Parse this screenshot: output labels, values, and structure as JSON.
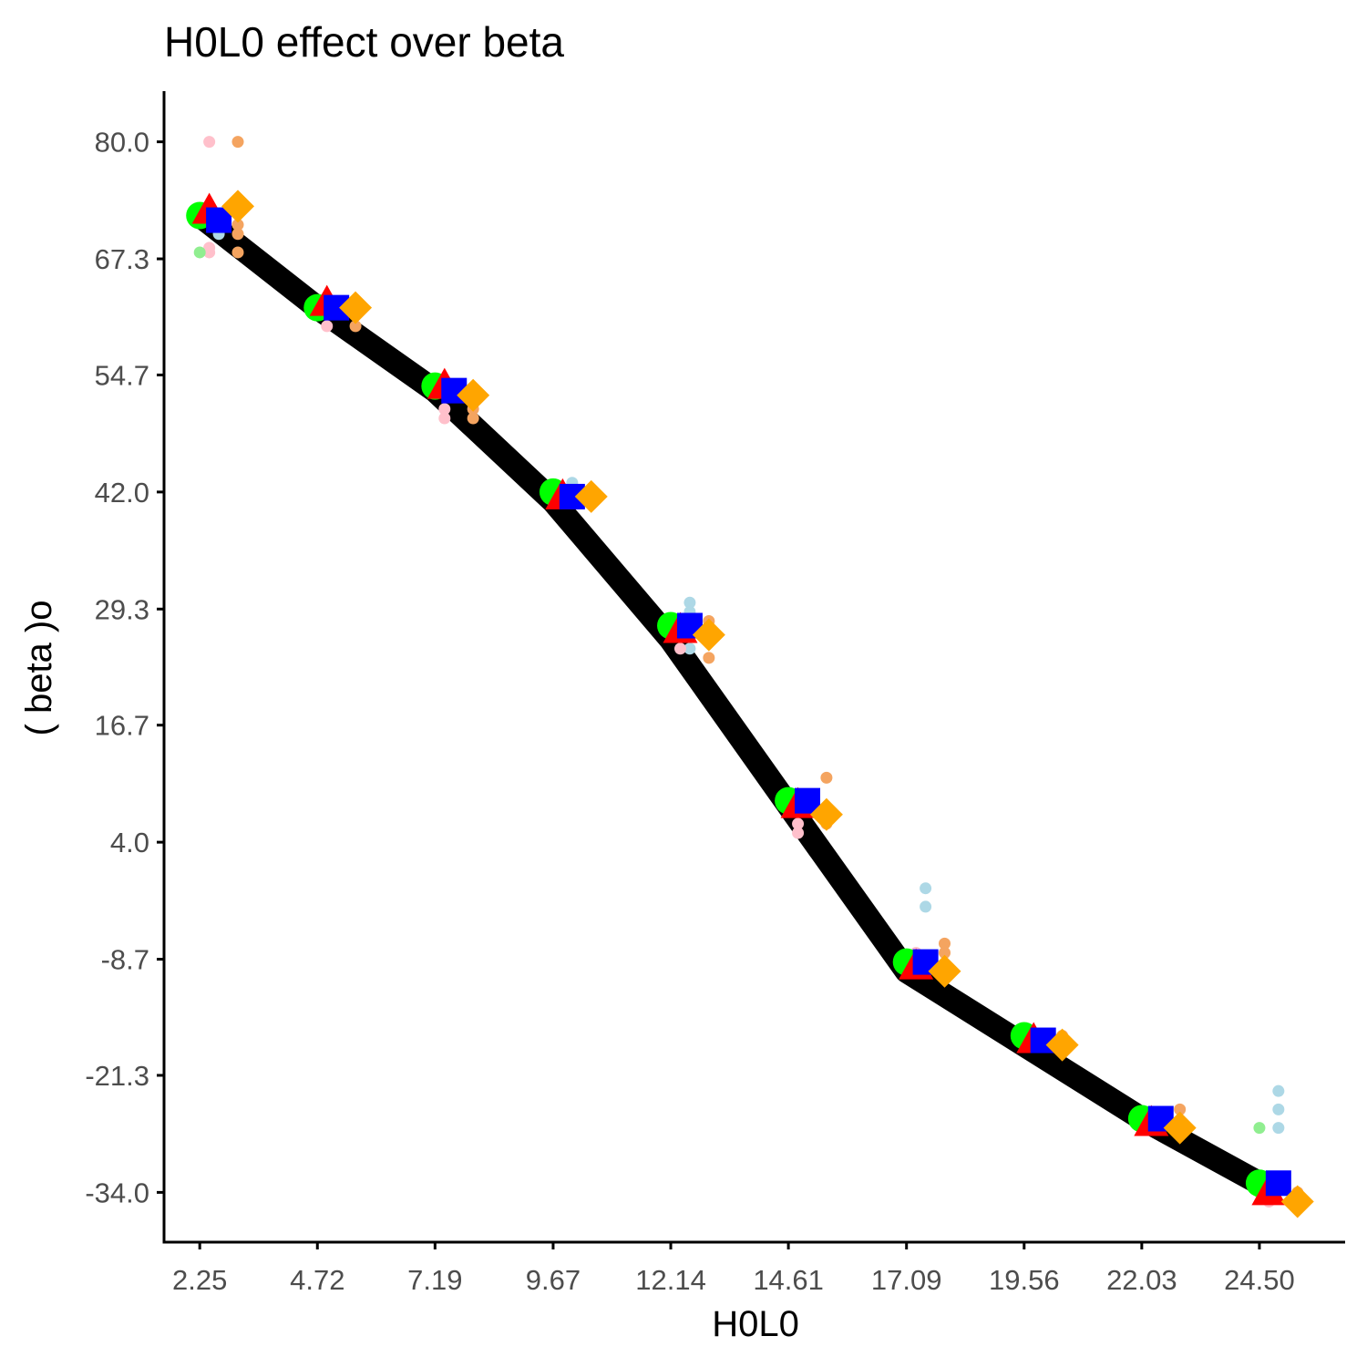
{
  "chart_data": {
    "type": "line",
    "title": "H0L0 effect over  beta",
    "xlabel": "H0L0",
    "ylabel": "( beta )o",
    "x_ticks": [
      "2.25",
      "4.72",
      "7.19",
      "9.67",
      "12.14",
      "14.61",
      "17.09",
      "19.56",
      "22.03",
      "24.50"
    ],
    "y_ticks": [
      "80.0",
      "67.3",
      "54.7",
      "42.0",
      "29.3",
      "16.7",
      "4.0",
      "-8.7",
      "-21.3",
      "-34.0"
    ],
    "xlim": [
      1.5,
      26.3
    ],
    "ylim": [
      -39.4,
      85.5
    ],
    "grid": false,
    "legend": "none",
    "colors": {
      "trend": "#000000",
      "green": "#00ff00",
      "red": "#ff0000",
      "blue": "#0000ff",
      "orange": "#ffa500",
      "light_green": "#90ee90",
      "light_blue": "#add8e6",
      "pink": "#ffc0cb",
      "sandy": "#f4a460"
    },
    "x": [
      2.25,
      4.72,
      7.19,
      9.67,
      12.14,
      14.61,
      17.09,
      19.56,
      22.03,
      24.5
    ],
    "trend_line": [
      72,
      62,
      53,
      41,
      26,
      8,
      -10,
      -18,
      -26,
      -33
    ],
    "series": [
      {
        "shape": "circle",
        "color": "#00ff00",
        "offset": 0.0,
        "values": [
          72.0,
          62.0,
          53.5,
          42.0,
          27.5,
          8.5,
          -9.0,
          -17.0,
          -26.0,
          -33.0
        ]
      },
      {
        "shape": "triangle",
        "color": "#ff0000",
        "offset": 0.2,
        "values": [
          72.5,
          62.5,
          53.5,
          41.5,
          27.0,
          8.0,
          -9.5,
          -17.5,
          -26.5,
          -34.0
        ]
      },
      {
        "shape": "square",
        "color": "#0000ff",
        "offset": 0.4,
        "values": [
          71.5,
          62.0,
          53.0,
          41.5,
          27.5,
          8.5,
          -9.0,
          -17.5,
          -26.0,
          -33.0
        ]
      },
      {
        "shape": "diamond",
        "color": "#ffa500",
        "offset": 0.8,
        "values": [
          73.0,
          62.0,
          52.5,
          41.5,
          26.5,
          7.0,
          -10.0,
          -18.0,
          -27.0,
          -35.0
        ]
      }
    ],
    "small_points": [
      {
        "color": "#ffc0cb",
        "x": 2.45,
        "y": 80.0
      },
      {
        "color": "#f4a460",
        "x": 3.05,
        "y": 80.0
      },
      {
        "color": "#add8e6",
        "x": 2.65,
        "y": 70.0
      },
      {
        "color": "#ffc0cb",
        "x": 2.45,
        "y": 68.5
      },
      {
        "color": "#ffc0cb",
        "x": 2.45,
        "y": 68.0
      },
      {
        "color": "#90ee90",
        "x": 2.25,
        "y": 68.0
      },
      {
        "color": "#f4a460",
        "x": 3.05,
        "y": 70.0
      },
      {
        "color": "#f4a460",
        "x": 3.05,
        "y": 71.0
      },
      {
        "color": "#f4a460",
        "x": 3.05,
        "y": 68.0
      },
      {
        "color": "#ffc0cb",
        "x": 4.92,
        "y": 60.0
      },
      {
        "color": "#f4a460",
        "x": 5.52,
        "y": 60.0
      },
      {
        "color": "#ffc0cb",
        "x": 7.39,
        "y": 50.0
      },
      {
        "color": "#ffc0cb",
        "x": 7.39,
        "y": 51.0
      },
      {
        "color": "#f4a460",
        "x": 7.99,
        "y": 50.0
      },
      {
        "color": "#f4a460",
        "x": 7.99,
        "y": 51.0
      },
      {
        "color": "#add8e6",
        "x": 10.07,
        "y": 43.0
      },
      {
        "color": "#add8e6",
        "x": 12.54,
        "y": 30.0
      },
      {
        "color": "#add8e6",
        "x": 12.54,
        "y": 29.0
      },
      {
        "color": "#add8e6",
        "x": 12.54,
        "y": 25.0
      },
      {
        "color": "#ffc0cb",
        "x": 12.34,
        "y": 25.0
      },
      {
        "color": "#f4a460",
        "x": 12.94,
        "y": 28.0
      },
      {
        "color": "#f4a460",
        "x": 12.94,
        "y": 24.0
      },
      {
        "color": "#f4a460",
        "x": 15.41,
        "y": 11.0
      },
      {
        "color": "#ffc0cb",
        "x": 14.81,
        "y": 6.0
      },
      {
        "color": "#ffc0cb",
        "x": 14.81,
        "y": 5.0
      },
      {
        "color": "#f4a460",
        "x": 15.41,
        "y": 6.0
      },
      {
        "color": "#add8e6",
        "x": 17.49,
        "y": -1.0
      },
      {
        "color": "#add8e6",
        "x": 17.49,
        "y": -3.0
      },
      {
        "color": "#f4a460",
        "x": 17.89,
        "y": -8.0
      },
      {
        "color": "#f4a460",
        "x": 17.89,
        "y": -7.0
      },
      {
        "color": "#ffc0cb",
        "x": 17.29,
        "y": -8.0
      },
      {
        "color": "#ffc0cb",
        "x": 17.29,
        "y": -9.0
      },
      {
        "color": "#ffc0cb",
        "x": 19.76,
        "y": -17.0
      },
      {
        "color": "#ffc0cb",
        "x": 19.76,
        "y": -18.0
      },
      {
        "color": "#f4a460",
        "x": 20.36,
        "y": -17.0
      },
      {
        "color": "#f4a460",
        "x": 20.36,
        "y": -18.0
      },
      {
        "color": "#ffc0cb",
        "x": 22.23,
        "y": -27.0
      },
      {
        "color": "#f4a460",
        "x": 22.83,
        "y": -25.0
      },
      {
        "color": "#f4a460",
        "x": 22.83,
        "y": -27.0
      },
      {
        "color": "#add8e6",
        "x": 24.9,
        "y": -23.0
      },
      {
        "color": "#add8e6",
        "x": 24.9,
        "y": -25.0
      },
      {
        "color": "#add8e6",
        "x": 24.9,
        "y": -27.0
      },
      {
        "color": "#90ee90",
        "x": 24.5,
        "y": -27.0
      },
      {
        "color": "#90ee90",
        "x": 24.5,
        "y": -34.0
      },
      {
        "color": "#ffc0cb",
        "x": 24.7,
        "y": -34.0
      },
      {
        "color": "#ffc0cb",
        "x": 24.7,
        "y": -35.0
      },
      {
        "color": "#f4a460",
        "x": 25.3,
        "y": -34.0
      }
    ]
  }
}
